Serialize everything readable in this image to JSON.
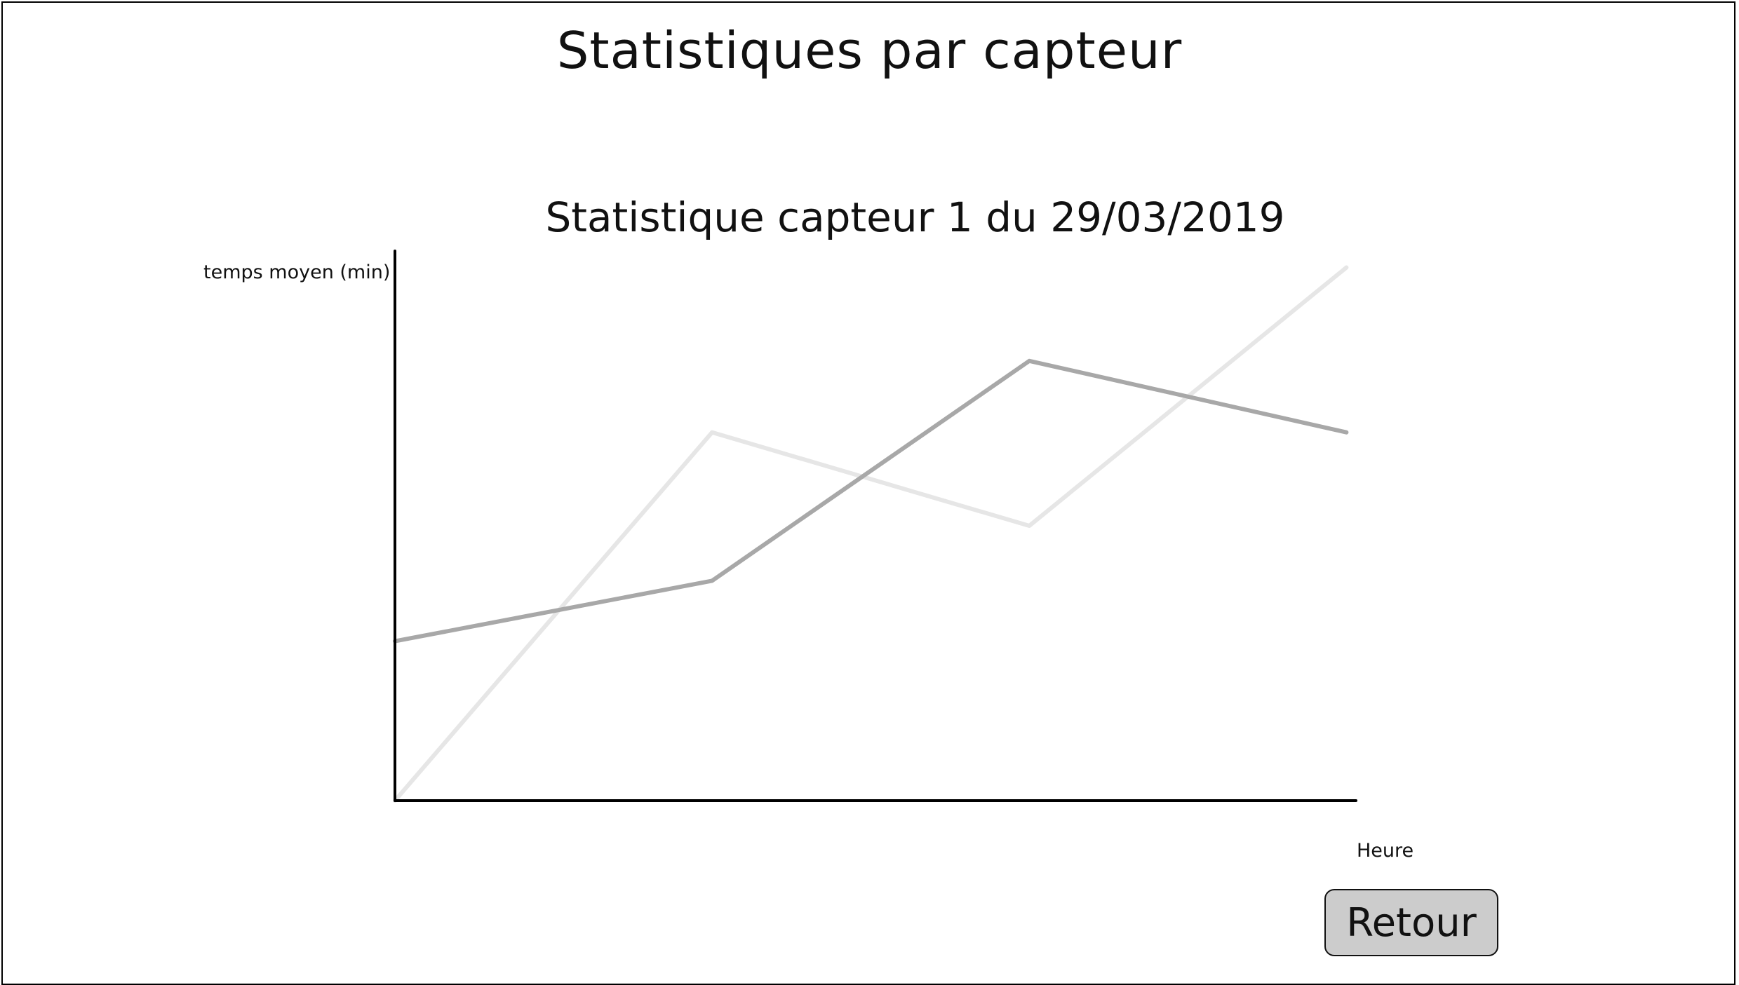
{
  "page": {
    "title": "Statistiques par capteur"
  },
  "actions": {
    "back_label": "Retour"
  },
  "chart_data": {
    "type": "line",
    "title": "Statistique capteur 1 du 29/03/2019",
    "xlabel": "Heure",
    "ylabel": "temps moyen (min)",
    "x": [
      0,
      1,
      2,
      3
    ],
    "xlim": [
      0,
      3.03
    ],
    "ylim": [
      0,
      100
    ],
    "grid": false,
    "series": [
      {
        "values": [
          0,
          67,
          50,
          97
        ],
        "color": "#e6e6e6"
      },
      {
        "values": [
          29,
          40,
          80,
          67
        ],
        "color": "#a8a8a8"
      }
    ]
  }
}
